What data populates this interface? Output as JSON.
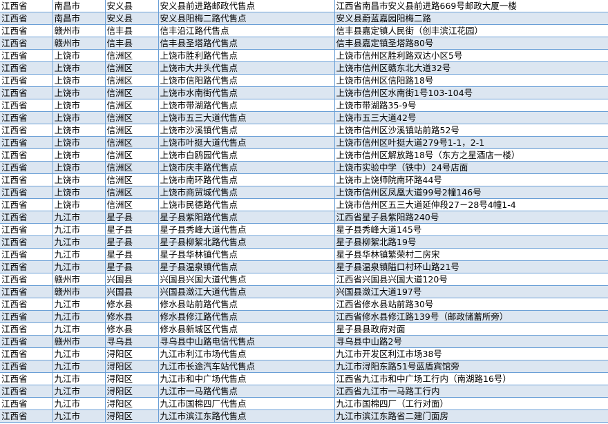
{
  "sheet": {
    "rows": [
      [
        "江西省",
        "南昌市",
        "安义县",
        "安义县前进路邮政代售点",
        "江西省南昌市安义县前进路669号邮政大厦一楼"
      ],
      [
        "江西省",
        "南昌市",
        "安义县",
        "安义县阳梅二路代售点",
        "安义县蔚蓝嘉园阳梅二路"
      ],
      [
        "江西省",
        "赣州市",
        "信丰县",
        "信丰沿江路代售点",
        "信丰县嘉定镇人民街（创丰滨江花园）"
      ],
      [
        "江西省",
        "赣州市",
        "信丰县",
        "信丰县圣塔路代售点",
        "信丰县嘉定镇圣塔路80号"
      ],
      [
        "江西省",
        "上饶市",
        "信洲区",
        "上饶市胜利路代售点",
        "上饶市信州区胜利路双达小区5号"
      ],
      [
        "江西省",
        "上饶市",
        "信洲区",
        "上饶市大井头代售点",
        "上饶市信州区赣东北大道32号"
      ],
      [
        "江西省",
        "上饶市",
        "信洲区",
        "上饶市信阳路代售点",
        "上饶市信州区信阳路18号"
      ],
      [
        "江西省",
        "上饶市",
        "信洲区",
        "上饶市水南街代售点",
        "上饶市信州区水南街1号103-104号"
      ],
      [
        "江西省",
        "上饶市",
        "信洲区",
        "上饶市带湖路代售点",
        "上饶市带湖路35-9号"
      ],
      [
        "江西省",
        "上饶市",
        "信洲区",
        "上饶市五三大道代售点",
        "上饶市五三大道42号"
      ],
      [
        "江西省",
        "上饶市",
        "信洲区",
        "上饶市沙溪镇代售点",
        "上饶市信州区沙溪镇站前路52号"
      ],
      [
        "江西省",
        "上饶市",
        "信洲区",
        "上饶市叶挺大道代售点",
        "上饶市信州区叶挺大道279号1-1，2-1"
      ],
      [
        "江西省",
        "上饶市",
        "信洲区",
        "上饶市白鸥园代售点",
        "上饶市信州区解放路18号（东方之星酒店一楼）"
      ],
      [
        "江西省",
        "上饶市",
        "信洲区",
        "上饶市庆丰路代售点",
        "上饶市实验中学（铁中）24号店面"
      ],
      [
        "江西省",
        "上饶市",
        "信洲区",
        "上饶市南环路代售点",
        "上饶市上饶师院南环路44号"
      ],
      [
        "江西省",
        "上饶市",
        "信洲区",
        "上饶市商贸城代售点",
        "上饶市信州区凤凰大道99号2幢146号"
      ],
      [
        "江西省",
        "上饶市",
        "信洲区",
        "上饶市民德路代售点",
        "上饶市信州区五三大道延伸段27－28号4幢1-4"
      ],
      [
        "江西省",
        "九江市",
        "星子县",
        "星子县紫阳路代售点",
        "江西省星子县紫阳路240号"
      ],
      [
        "江西省",
        "九江市",
        "星子县",
        "星子县秀峰大道代售点",
        "星子县秀峰大道145号"
      ],
      [
        "江西省",
        "九江市",
        "星子县",
        "星子县柳絮北路代售点",
        "星子县柳絮北路19号"
      ],
      [
        "江西省",
        "九江市",
        "星子县",
        "星子县华林镇代售点",
        "星子县华林镇繁荣村二房宋"
      ],
      [
        "江西省",
        "九江市",
        "星子县",
        "星子县温泉镇代售点",
        "星子县温泉镇隘口村环山路21号"
      ],
      [
        "江西省",
        "赣州市",
        "兴国县",
        "兴国县兴国大道代售点",
        "江西省兴国县兴国大道120号"
      ],
      [
        "江西省",
        "赣州市",
        "兴国县",
        "兴国县潋江大道代售点",
        "兴国县潋江大道197号"
      ],
      [
        "江西省",
        "九江市",
        "修水县",
        "修水县站前路代售点",
        "江西省修水县站前路30号"
      ],
      [
        "江西省",
        "九江市",
        "修水县",
        "修水县修江路代售点",
        "江西省修水县修江路139号（邮政储蓄所旁）"
      ],
      [
        "江西省",
        "九江市",
        "修水县",
        "修水县新城区代售点",
        "星子县县政府对面"
      ],
      [
        "江西省",
        "赣州市",
        "寻乌县",
        "寻乌县中山路电信代售点",
        "寻乌县中山路2号"
      ],
      [
        "江西省",
        "九江市",
        "浔阳区",
        "九江市利江市场代售点",
        "九江市开发区利江市场38号"
      ],
      [
        "江西省",
        "九江市",
        "浔阳区",
        "九江市长途汽车站代售点",
        "九江市浔阳东路51号蓝盾宾馆旁"
      ],
      [
        "江西省",
        "九江市",
        "浔阳区",
        "九江市和中广场代售点",
        "江西省九江市和中广场工行内（南湖路16号）"
      ],
      [
        "江西省",
        "九江市",
        "浔阳区",
        "九江市一马路代售点",
        "江西省九江市一马路工行内"
      ],
      [
        "江西省",
        "九江市",
        "浔阳区",
        "九江市国棉四厂代售点",
        "九江市国棉四厂（工行对面）"
      ],
      [
        "江西省",
        "九江市",
        "浔阳区",
        "九江市滨江东路代售点",
        "九江市滨江东路省二建门面房"
      ]
    ]
  },
  "colors": {
    "band": "#dce6f1",
    "grid": "#6a9fd6"
  }
}
